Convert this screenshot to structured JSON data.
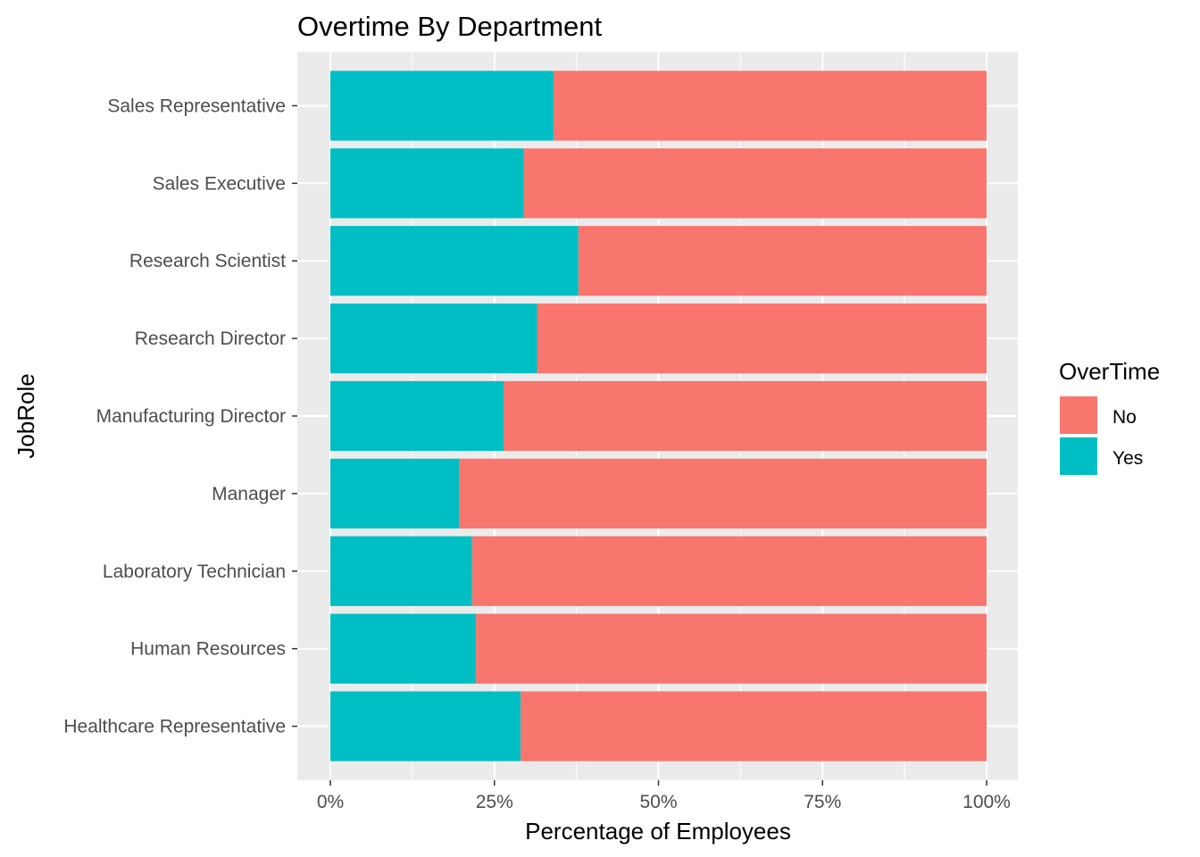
{
  "chart_data": {
    "type": "bar",
    "orientation": "horizontal",
    "stacked": true,
    "title": "Overtime By Department",
    "xlabel": "Percentage of Employees",
    "ylabel": "JobRole",
    "xlim": [
      0,
      1
    ],
    "x_ticks": [
      "0%",
      "25%",
      "50%",
      "75%",
      "100%"
    ],
    "grid": true,
    "legend": {
      "title": "OverTime",
      "placement": "right",
      "entries": [
        {
          "name": "No",
          "color": "#F8766D"
        },
        {
          "name": "Yes",
          "color": "#00BFC4"
        }
      ]
    },
    "categories": [
      "Sales Representative",
      "Sales Executive",
      "Research Scientist",
      "Research Director",
      "Manufacturing Director",
      "Manager",
      "Laboratory Technician",
      "Human Resources",
      "Healthcare Representative"
    ],
    "series": [
      {
        "name": "Yes",
        "color": "#00BFC4",
        "values": [
          0.34,
          0.295,
          0.378,
          0.315,
          0.264,
          0.196,
          0.216,
          0.222,
          0.29
        ]
      },
      {
        "name": "No",
        "color": "#F8766D",
        "values": [
          0.66,
          0.705,
          0.622,
          0.685,
          0.736,
          0.804,
          0.784,
          0.778,
          0.71
        ]
      }
    ]
  }
}
